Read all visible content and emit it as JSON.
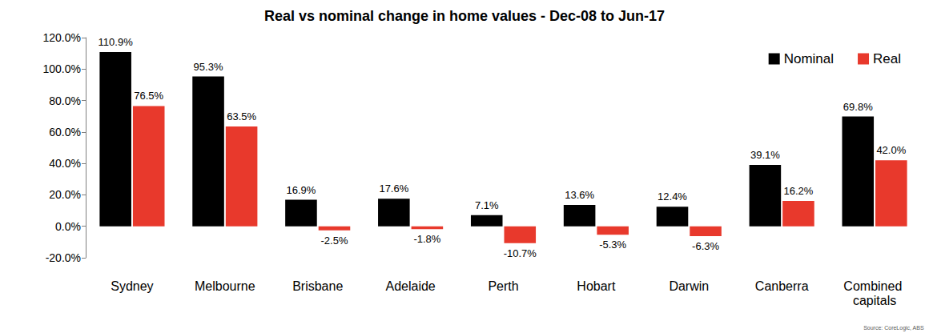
{
  "chart_data": {
    "type": "bar",
    "title": "Real vs nominal change in home values - Dec-08 to Jun-17",
    "categories": [
      "Sydney",
      "Melbourne",
      "Brisbane",
      "Adelaide",
      "Perth",
      "Hobart",
      "Darwin",
      "Canberra",
      "Combined capitals"
    ],
    "series": [
      {
        "name": "Nominal",
        "color": "#000000",
        "values": [
          110.9,
          95.3,
          16.9,
          17.6,
          7.1,
          13.6,
          12.4,
          39.1,
          69.8
        ],
        "value_labels": [
          "110.9%",
          "95.3%",
          "16.9%",
          "17.6%",
          "7.1%",
          "13.6%",
          "12.4%",
          "39.1%",
          "69.8%"
        ]
      },
      {
        "name": "Real",
        "color": "#e8392c",
        "values": [
          76.5,
          63.5,
          -2.5,
          -1.8,
          -10.7,
          -5.3,
          -6.3,
          16.2,
          42.0
        ],
        "value_labels": [
          "76.5%",
          "63.5%",
          "-2.5%",
          "-1.8%",
          "-10.7%",
          "-5.3%",
          "-6.3%",
          "16.2%",
          "42.0%"
        ]
      }
    ],
    "ylim": [
      -20,
      120
    ],
    "yticks": [
      {
        "value": -20,
        "label": "-20.0%"
      },
      {
        "value": 0,
        "label": "0.0%"
      },
      {
        "value": 20,
        "label": "20.0%"
      },
      {
        "value": 40,
        "label": "40.0%"
      },
      {
        "value": 60,
        "label": "60.0%"
      },
      {
        "value": 80,
        "label": "80.0%"
      },
      {
        "value": 100,
        "label": "100.0%"
      },
      {
        "value": 120,
        "label": "120.0%"
      }
    ],
    "grid": false,
    "legend": "upper right",
    "data_labels": true,
    "annotations": [
      "Source: CoreLogic, ABS"
    ]
  }
}
